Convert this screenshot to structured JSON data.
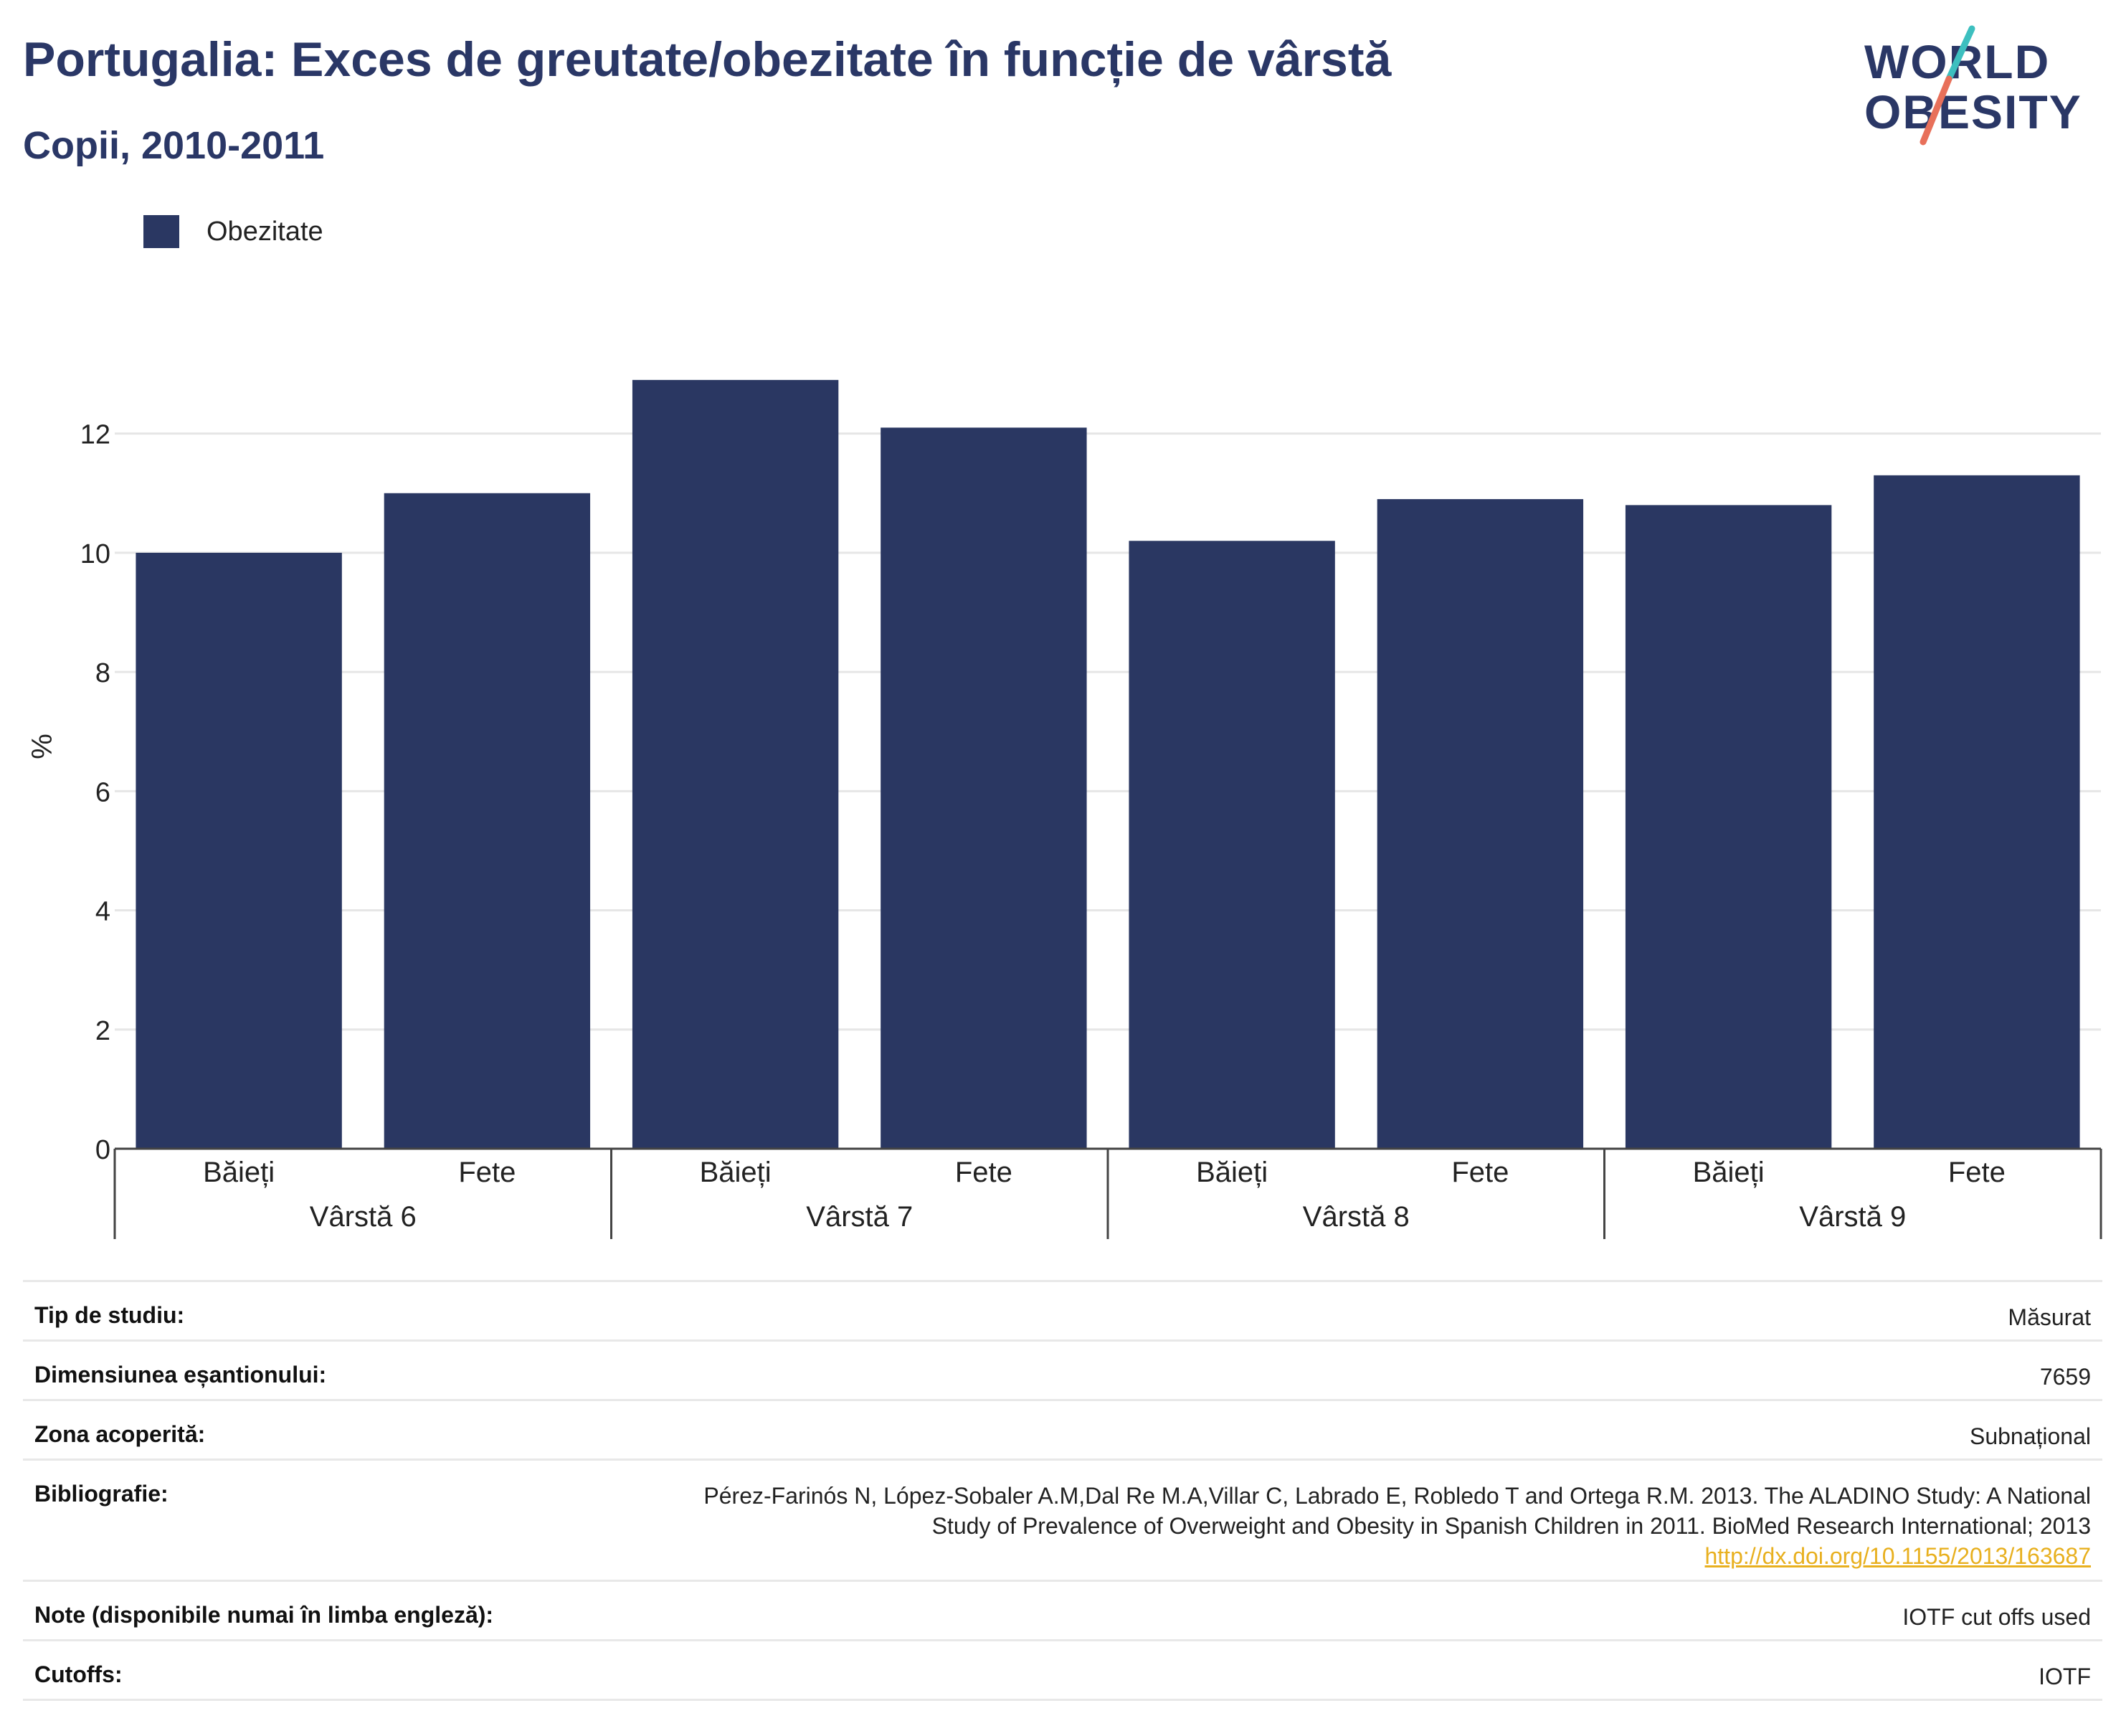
{
  "header": {
    "title": "Portugalia: Exces de greutate/obezitate în funcție de vârstă",
    "subtitle": "Copii, 2010-2011"
  },
  "logo": {
    "line1": "WORLD",
    "line2": "OBESITY"
  },
  "colors": {
    "bar": "#2a3762",
    "accent_teal": "#3dbfbf",
    "accent_coral": "#e8705a"
  },
  "chart_data": {
    "type": "bar",
    "ylabel": "%",
    "ylim": [
      0,
      13.5
    ],
    "yticks": [
      0,
      2,
      4,
      6,
      8,
      10,
      12
    ],
    "legend": "top-left",
    "grid": true,
    "series": [
      {
        "name": "Obezitate",
        "values": [
          10,
          11,
          12.9,
          12.1,
          10.2,
          10.9,
          10.8,
          11.3
        ]
      }
    ],
    "categories": [
      "Băieți",
      "Fete",
      "Băieți",
      "Fete",
      "Băieți",
      "Fete",
      "Băieți",
      "Fete"
    ],
    "groups": [
      "Vârstă 6",
      "Vârstă 7",
      "Vârstă 8",
      "Vârstă 9"
    ]
  },
  "info_table": [
    {
      "label": "Tip de studiu:",
      "value": "Măsurat"
    },
    {
      "label": "Dimensiunea eșantionului:",
      "value": "7659"
    },
    {
      "label": "Zona acoperită:",
      "value": "Subnațional"
    },
    {
      "label": "Bibliografie:",
      "value_lines": [
        "Pérez-Farinós N, López-Sobaler A.M,Dal Re M.A,Villar C, Labrado E, Robledo T and Ortega R.M. 2013. The ALADINO Study: A National",
        "Study of Prevalence of Overweight and Obesity in Spanish Children in 2011. BioMed Research International; 2013"
      ],
      "link": "http://dx.doi.org/10.1155/2013/163687"
    },
    {
      "label": "Note (disponibile numai în limba engleză):",
      "value": "IOTF cut offs used"
    },
    {
      "label": "Cutoffs:",
      "value": "IOTF"
    }
  ]
}
